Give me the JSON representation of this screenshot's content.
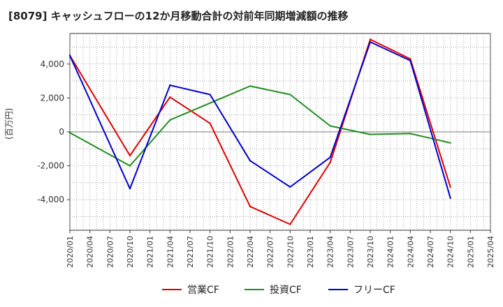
{
  "chart_data": {
    "type": "line",
    "title": "[8079]  キャッシュフローの12か月移動合計の対前年同期増減額の推移",
    "ylabel": "(百万円)",
    "xlabel": "",
    "ylim": [
      -5800,
      5800
    ],
    "yticks": [
      -4000,
      -2000,
      0,
      2000,
      4000
    ],
    "ytick_labels": [
      "-4,000",
      "-2,000",
      "0",
      "2,000",
      "4,000"
    ],
    "x_ticks": [
      "2020/01",
      "2020/04",
      "2020/07",
      "2020/10",
      "2021/01",
      "2021/04",
      "2021/07",
      "2021/10",
      "2022/01",
      "2022/04",
      "2022/07",
      "2022/10",
      "2023/01",
      "2023/04",
      "2023/07",
      "2023/10",
      "2024/01",
      "2024/04",
      "2024/07",
      "2024/10",
      "2025/01",
      "2025/04"
    ],
    "x": [
      "2020/01",
      "2020/10",
      "2021/04",
      "2021/10",
      "2022/04",
      "2022/10",
      "2023/04",
      "2023/10",
      "2024/04",
      "2024/10"
    ],
    "grid": true,
    "legend_position": "bottom",
    "series": [
      {
        "name": "営業CF",
        "color": "#e00000",
        "values": [
          4500,
          -1400,
          2050,
          500,
          -4400,
          -5450,
          -1800,
          5450,
          4300,
          -3250
        ]
      },
      {
        "name": "投資CF",
        "color": "#228b22",
        "values": [
          -50,
          -2000,
          700,
          1700,
          2700,
          2200,
          350,
          -150,
          -100,
          -650
        ]
      },
      {
        "name": "フリーCF",
        "color": "#0000cc",
        "values": [
          4500,
          -3350,
          2750,
          2200,
          -1700,
          -3250,
          -1500,
          5300,
          4200,
          -3900
        ]
      }
    ]
  }
}
